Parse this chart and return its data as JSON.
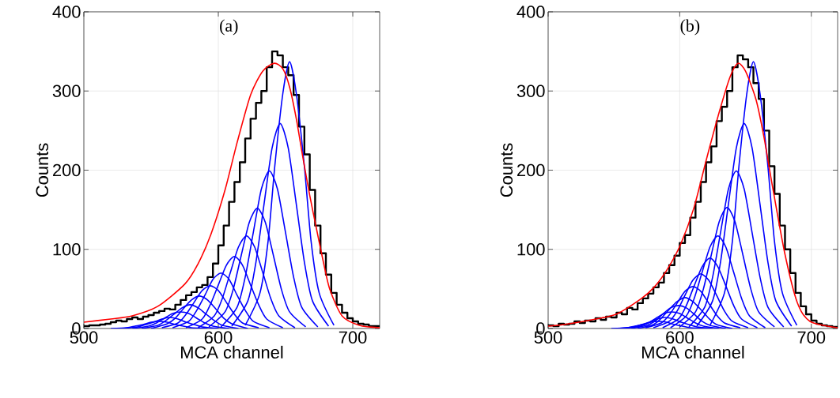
{
  "chart_data": [
    {
      "type": "line",
      "annotations": [
        "(a)"
      ],
      "xlabel": "MCA channel",
      "ylabel": "Counts",
      "xlim": [
        500,
        720
      ],
      "ylim": [
        0,
        400
      ],
      "xticks": [
        500,
        600,
        700
      ],
      "yticks": [
        0,
        100,
        200,
        300,
        400
      ],
      "grid": true,
      "series": [
        {
          "type": "step",
          "color": "#000000",
          "x": [
            500,
            504,
            508,
            512,
            516,
            520,
            524,
            528,
            532,
            536,
            540,
            544,
            548,
            552,
            556,
            560,
            564,
            568,
            572,
            576,
            580,
            584,
            588,
            592,
            596,
            600,
            604,
            608,
            612,
            616,
            620,
            624,
            628,
            632,
            636,
            640,
            644,
            648,
            652,
            656,
            660,
            664,
            668,
            672,
            676,
            680,
            684,
            688,
            692,
            696,
            700,
            704,
            708,
            712,
            716,
            720
          ],
          "values": [
            3,
            4,
            4,
            5,
            6,
            8,
            10,
            9,
            12,
            14,
            12,
            15,
            17,
            20,
            22,
            25,
            24,
            30,
            36,
            42,
            46,
            52,
            55,
            65,
            82,
            105,
            130,
            160,
            185,
            210,
            240,
            265,
            285,
            300,
            330,
            350,
            345,
            330,
            320,
            295,
            255,
            220,
            175,
            130,
            95,
            68,
            45,
            30,
            20,
            13,
            9,
            6,
            5,
            3,
            3,
            2
          ]
        },
        {
          "color": "#0000ff",
          "x": [
            620,
            631,
            637,
            642,
            648,
            653,
            658,
            664,
            669,
            675,
            686
          ],
          "values": [
            4,
            45,
            110,
            205,
            297,
            337,
            297,
            205,
            110,
            45,
            4
          ]
        },
        {
          "color": "#0000ff",
          "x": [
            610,
            622,
            628,
            634,
            640,
            646,
            652,
            658,
            664,
            670,
            682
          ],
          "values": [
            3,
            35,
            84,
            157,
            228,
            259,
            228,
            157,
            84,
            35,
            3
          ]
        },
        {
          "color": "#0000ff",
          "x": [
            602,
            614,
            620,
            626,
            632,
            638,
            644,
            650,
            656,
            662,
            674
          ],
          "values": [
            2,
            27,
            65,
            121,
            176,
            199,
            176,
            121,
            65,
            27,
            2
          ]
        },
        {
          "color": "#0000ff",
          "x": [
            593,
            605,
            611,
            617,
            623,
            629,
            635,
            641,
            647,
            653,
            665
          ],
          "values": [
            2,
            21,
            49,
            92,
            134,
            152,
            134,
            92,
            49,
            21,
            2
          ]
        },
        {
          "color": "#0000ff",
          "x": [
            585,
            597,
            603,
            609,
            615,
            621,
            627,
            633,
            639,
            645,
            657
          ],
          "values": [
            1,
            16,
            38,
            71,
            103,
            117,
            103,
            71,
            38,
            16,
            1
          ]
        },
        {
          "color": "#0000ff",
          "x": [
            576,
            588,
            594,
            600,
            606,
            612,
            618,
            624,
            630,
            636,
            648
          ],
          "values": [
            1,
            12,
            30,
            55,
            80,
            91,
            80,
            55,
            30,
            12,
            1
          ]
        },
        {
          "color": "#0000ff",
          "x": [
            566,
            578,
            584,
            590,
            596,
            602,
            608,
            614,
            620,
            626,
            638
          ],
          "values": [
            1,
            9,
            23,
            42,
            62,
            70,
            62,
            42,
            23,
            9,
            1
          ]
        },
        {
          "color": "#0000ff",
          "x": [
            558,
            570,
            576,
            582,
            588,
            594,
            600,
            606,
            612,
            618,
            630
          ],
          "values": [
            1,
            7,
            18,
            33,
            48,
            54,
            48,
            33,
            18,
            7,
            1
          ]
        },
        {
          "color": "#0000ff",
          "x": [
            550,
            562,
            568,
            574,
            580,
            586,
            592,
            598,
            604,
            610,
            622
          ],
          "values": [
            0,
            6,
            13,
            25,
            36,
            41,
            36,
            25,
            13,
            6,
            0
          ]
        },
        {
          "color": "#0000ff",
          "x": [
            543,
            555,
            561,
            567,
            573,
            579,
            585,
            591,
            597,
            603,
            615
          ],
          "values": [
            0,
            4,
            10,
            18,
            26,
            30,
            26,
            18,
            10,
            4,
            0
          ]
        },
        {
          "color": "#0000ff",
          "x": [
            536,
            548,
            554,
            560,
            566,
            572,
            578,
            584,
            590,
            596,
            608
          ],
          "values": [
            0,
            3,
            7,
            13,
            19,
            21,
            19,
            13,
            7,
            3,
            0
          ]
        },
        {
          "color": "#0000ff",
          "x": [
            528,
            540,
            546,
            552,
            558,
            564,
            570,
            576,
            582,
            588,
            600
          ],
          "values": [
            0,
            2,
            5,
            8,
            12,
            14,
            12,
            8,
            5,
            2,
            0
          ]
        },
        {
          "color": "#0000ff",
          "x": [
            520,
            532,
            538,
            544,
            550,
            556,
            562,
            568,
            574,
            580,
            592
          ],
          "values": [
            0,
            1,
            3,
            5,
            8,
            9,
            8,
            5,
            3,
            1,
            0
          ]
        },
        {
          "color": "#ff0000",
          "x": [
            500,
            520,
            536,
            555,
            575,
            585,
            594.5,
            605,
            614,
            624,
            633,
            641.6,
            648,
            653,
            658,
            663,
            668,
            673,
            678,
            683,
            692,
            705,
            720
          ],
          "values": [
            8,
            12,
            16,
            28,
            56,
            82,
            119,
            175,
            235,
            295,
            325,
            335,
            328,
            305,
            265,
            215,
            168,
            126,
            85,
            49,
            16,
            4,
            1
          ]
        }
      ]
    },
    {
      "type": "line",
      "annotations": [
        "(b)"
      ],
      "xlabel": "MCA channel",
      "ylabel": "Counts",
      "xlim": [
        500,
        720
      ],
      "ylim": [
        0,
        400
      ],
      "xticks": [
        500,
        600,
        700
      ],
      "yticks": [
        0,
        100,
        200,
        300,
        400
      ],
      "grid": true,
      "series": [
        {
          "type": "step",
          "color": "#000000",
          "x": [
            500,
            504,
            508,
            512,
            516,
            520,
            524,
            528,
            532,
            536,
            540,
            544,
            548,
            552,
            556,
            560,
            564,
            568,
            572,
            576,
            580,
            584,
            588,
            592,
            596,
            600,
            604,
            608,
            612,
            616,
            620,
            624,
            628,
            632,
            636,
            640,
            644,
            648,
            652,
            656,
            660,
            664,
            668,
            672,
            676,
            680,
            684,
            688,
            692,
            696,
            700,
            704,
            708,
            712,
            716,
            720
          ],
          "values": [
            4,
            3,
            6,
            5,
            6,
            9,
            7,
            10,
            9,
            13,
            11,
            15,
            14,
            20,
            18,
            26,
            24,
            32,
            38,
            44,
            52,
            58,
            70,
            80,
            92,
            108,
            118,
            140,
            160,
            185,
            210,
            230,
            262,
            280,
            300,
            330,
            345,
            340,
            330,
            310,
            290,
            250,
            205,
            170,
            130,
            100,
            70,
            45,
            28,
            18,
            10,
            6,
            4,
            3,
            2,
            2
          ]
        },
        {
          "color": "#0000ff",
          "x": [
            623,
            634,
            640,
            645,
            651,
            656,
            661,
            667,
            672,
            678,
            689
          ],
          "values": [
            4,
            45,
            110,
            205,
            297,
            337,
            297,
            205,
            110,
            45,
            4
          ]
        },
        {
          "color": "#0000ff",
          "x": [
            613,
            625,
            631,
            637,
            643,
            649,
            655,
            661,
            667,
            673,
            685
          ],
          "values": [
            3,
            35,
            84,
            157,
            228,
            259,
            228,
            157,
            84,
            35,
            3
          ]
        },
        {
          "color": "#0000ff",
          "x": [
            607,
            619,
            625,
            631,
            637,
            643,
            649,
            655,
            661,
            667,
            679
          ],
          "values": [
            2,
            27,
            65,
            121,
            176,
            199,
            176,
            121,
            65,
            27,
            2
          ]
        },
        {
          "color": "#0000ff",
          "x": [
            600,
            612,
            618,
            624,
            630,
            636,
            642,
            648,
            654,
            660,
            672
          ],
          "values": [
            2,
            21,
            50,
            93,
            135,
            153,
            135,
            93,
            50,
            21,
            2
          ]
        },
        {
          "color": "#0000ff",
          "x": [
            593,
            605,
            611,
            617,
            623,
            629,
            635,
            641,
            647,
            653,
            665
          ],
          "values": [
            1,
            16,
            38,
            71,
            103,
            117,
            103,
            71,
            38,
            16,
            1
          ]
        },
        {
          "color": "#0000ff",
          "x": [
            587,
            599,
            605,
            611,
            617,
            623,
            629,
            635,
            641,
            647,
            659
          ],
          "values": [
            1,
            12,
            29,
            54,
            78,
            89,
            78,
            54,
            29,
            12,
            1
          ]
        },
        {
          "color": "#0000ff",
          "x": [
            580,
            592,
            598,
            604,
            610,
            616,
            622,
            628,
            634,
            640,
            652
          ],
          "values": [
            1,
            9,
            22,
            42,
            61,
            69,
            61,
            42,
            22,
            9,
            1
          ]
        },
        {
          "color": "#0000ff",
          "x": [
            574,
            586,
            592,
            598,
            604,
            610,
            616,
            622,
            628,
            634,
            646
          ],
          "values": [
            1,
            7,
            17,
            32,
            47,
            53,
            47,
            32,
            17,
            7,
            1
          ]
        },
        {
          "color": "#0000ff",
          "x": [
            568,
            580,
            586,
            592,
            598,
            604,
            610,
            616,
            622,
            628,
            640
          ],
          "values": [
            0,
            5,
            13,
            24,
            34,
            39,
            34,
            24,
            13,
            5,
            0
          ]
        },
        {
          "color": "#0000ff",
          "x": [
            563,
            575,
            581,
            587,
            593,
            599,
            605,
            611,
            617,
            623,
            635
          ],
          "values": [
            0,
            4,
            9,
            18,
            26,
            29,
            26,
            18,
            9,
            4,
            0
          ]
        },
        {
          "color": "#0000ff",
          "x": [
            558,
            570,
            576,
            582,
            588,
            594,
            600,
            606,
            612,
            618,
            630
          ],
          "values": [
            0,
            3,
            7,
            13,
            19,
            21,
            19,
            13,
            7,
            3,
            0
          ]
        },
        {
          "color": "#0000ff",
          "x": [
            553,
            565,
            571,
            577,
            583,
            589,
            595,
            601,
            607,
            613,
            625
          ],
          "values": [
            0,
            2,
            5,
            8,
            12,
            14,
            12,
            8,
            5,
            2,
            0
          ]
        },
        {
          "color": "#0000ff",
          "x": [
            548,
            560,
            566,
            572,
            578,
            584,
            590,
            596,
            602,
            608,
            620
          ],
          "values": [
            0,
            1,
            3,
            5,
            8,
            9,
            8,
            5,
            3,
            1,
            0
          ]
        },
        {
          "color": "#ff0000",
          "x": [
            500,
            511.8,
            530,
            551.5,
            571,
            581,
            591,
            600.6,
            610.7,
            620.5,
            630.3,
            638.3,
            644.2,
            650,
            658,
            664,
            669.8,
            679.7,
            689.3,
            699,
            720
          ],
          "values": [
            3,
            5,
            10,
            18,
            38,
            53,
            76,
            106,
            152,
            215,
            275,
            318,
            335,
            325,
            289,
            242,
            186,
            96,
            33,
            9,
            1
          ]
        }
      ]
    }
  ]
}
